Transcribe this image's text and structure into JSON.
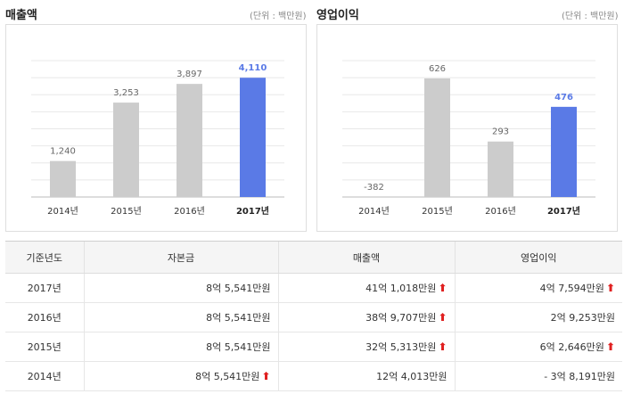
{
  "left": {
    "title": "매출액",
    "unit": "(단위 : 백만원)"
  },
  "right": {
    "title": "영업이익",
    "unit": "(단위 : 백만원)"
  },
  "highlight_color": "#5a7ae6",
  "base_color": "#cccccc",
  "chart_data": [
    {
      "type": "bar",
      "title": "매출액",
      "categories": [
        "2014년",
        "2015년",
        "2016년",
        "2017년"
      ],
      "values": [
        1240,
        3253,
        3897,
        4110
      ],
      "value_labels": [
        "1,240",
        "3,253",
        "3,897",
        "4,110"
      ],
      "highlight_index": 3,
      "ylim": [
        0,
        4700
      ],
      "grid": true
    },
    {
      "type": "bar",
      "title": "영업이익",
      "categories": [
        "2014년",
        "2015년",
        "2016년",
        "2017년"
      ],
      "values": [
        -382,
        626,
        293,
        476
      ],
      "value_labels": [
        "-382",
        "626",
        "293",
        "476"
      ],
      "highlight_index": 3,
      "ylim": [
        0,
        720
      ],
      "grid": true
    }
  ],
  "table": {
    "headers": [
      "기준년도",
      "자본금",
      "매출액",
      "영업이익"
    ],
    "rows": [
      {
        "year": "2017년",
        "capital": "8억 5,541만원",
        "capital_up": false,
        "sales": "41억 1,018만원",
        "sales_up": true,
        "op": "4억 7,594만원",
        "op_up": true
      },
      {
        "year": "2016년",
        "capital": "8억 5,541만원",
        "capital_up": false,
        "sales": "38억 9,707만원",
        "sales_up": true,
        "op": "2억 9,253만원",
        "op_up": false
      },
      {
        "year": "2015년",
        "capital": "8억 5,541만원",
        "capital_up": false,
        "sales": "32억 5,313만원",
        "sales_up": true,
        "op": "6억 2,646만원",
        "op_up": true
      },
      {
        "year": "2014년",
        "capital": "8억 5,541만원",
        "capital_up": true,
        "sales": "12억 4,013만원",
        "sales_up": false,
        "op": "- 3억 8,191만원",
        "op_up": false
      }
    ],
    "arrow_glyph": "⬆"
  }
}
